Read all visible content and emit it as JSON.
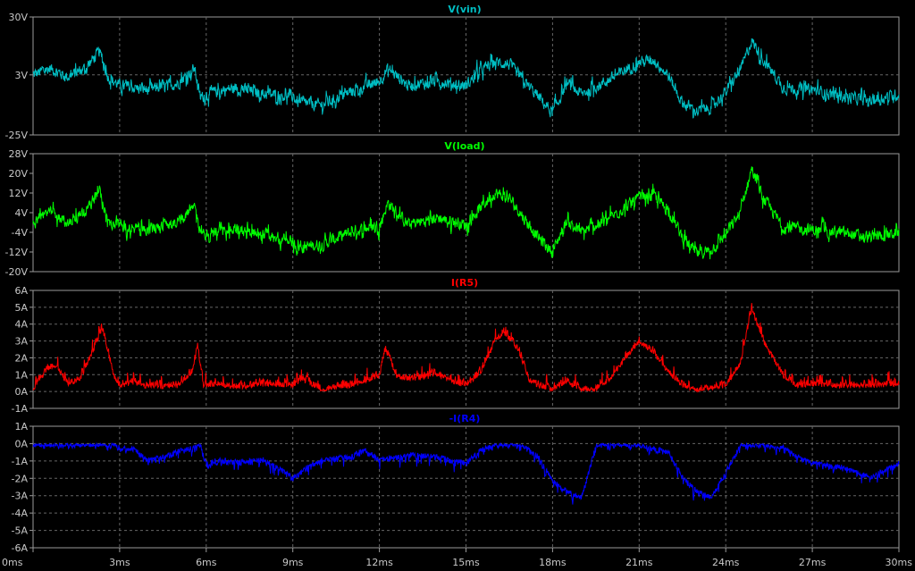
{
  "window": {
    "background": "#000000",
    "grid_color": "#666666",
    "frame_color": "#9a9a9a",
    "tick_color": "#c8c8c8"
  },
  "chart_data": [
    {
      "type": "line",
      "title": "V(vin)",
      "color": "#00bfc4",
      "y_ticks": [
        "30V",
        "3V",
        "-25V"
      ],
      "ylim": [
        -25,
        30
      ],
      "y_unit": "V",
      "x_ticks": [
        "0ms",
        "3ms",
        "6ms",
        "9ms",
        "12ms",
        "15ms",
        "18ms",
        "21ms",
        "24ms",
        "27ms",
        "30ms"
      ],
      "xlim": [
        0,
        30
      ],
      "x_unit": "ms",
      "grid": true,
      "noise": 4,
      "series": [
        {
          "x": [
            0,
            0.6,
            1.2,
            1.8,
            2.3,
            2.6,
            3.0,
            4.0,
            5.0,
            5.6,
            5.8,
            6.0,
            7.0,
            8.0,
            9.0,
            9.2,
            10.0,
            11.0,
            12.0,
            12.3,
            13.0,
            14.0,
            15.0,
            15.5,
            16.0,
            16.5,
            17.0,
            17.5,
            18.0,
            18.5,
            19.0,
            20.0,
            21.0,
            21.5,
            22.0,
            22.5,
            23.0,
            23.5,
            24.0,
            24.5,
            24.9,
            25.3,
            26.0,
            27.0,
            28.0,
            29.0,
            30.0
          ],
          "y": [
            3,
            6,
            2,
            6,
            14,
            2,
            -2,
            -4,
            -1,
            6,
            -8,
            -6,
            -3,
            -6,
            -7,
            -10,
            -11,
            -5,
            0,
            6,
            -2,
            0,
            -2,
            5,
            9,
            8,
            0,
            -7,
            -15,
            -1,
            -6,
            1,
            9,
            10,
            3,
            -10,
            -14,
            -12,
            -5,
            5,
            19,
            10,
            -3,
            -4,
            -7,
            -9,
            -6
          ]
        }
      ]
    },
    {
      "type": "line",
      "title": "V(load)",
      "color": "#00ff00",
      "y_ticks": [
        "28V",
        "20V",
        "12V",
        "4V",
        "-4V",
        "-12V",
        "-20V"
      ],
      "ylim": [
        -20,
        28
      ],
      "y_unit": "V",
      "x_ticks": [
        "0ms",
        "3ms",
        "6ms",
        "9ms",
        "12ms",
        "15ms",
        "18ms",
        "21ms",
        "24ms",
        "27ms",
        "30ms"
      ],
      "xlim": [
        0,
        30
      ],
      "x_unit": "ms",
      "grid": false,
      "noise": 3.5,
      "series": [
        {
          "x": [
            0,
            0.6,
            1.2,
            1.8,
            2.3,
            2.6,
            3.0,
            4.0,
            5.0,
            5.6,
            5.8,
            6.0,
            7.0,
            8.0,
            9.0,
            9.2,
            10.0,
            11.0,
            12.0,
            12.3,
            13.0,
            14.0,
            15.0,
            15.5,
            16.0,
            16.5,
            17.0,
            17.5,
            18.0,
            18.5,
            19.0,
            20.0,
            21.0,
            21.5,
            22.0,
            22.5,
            23.0,
            23.5,
            24.0,
            24.5,
            24.9,
            25.3,
            26.0,
            27.0,
            28.0,
            29.0,
            30.0
          ],
          "y": [
            0,
            4,
            0,
            4,
            13,
            0,
            -1,
            -3,
            0,
            7,
            -4,
            -5,
            -3,
            -5,
            -8,
            -10,
            -9,
            -4,
            -1,
            8,
            -1,
            2,
            -1,
            6,
            12,
            10,
            2,
            -6,
            -12,
            1,
            -4,
            2,
            10,
            11,
            5,
            -6,
            -13,
            -11,
            -5,
            4,
            22,
            10,
            -2,
            -3,
            -4,
            -6,
            -4
          ]
        }
      ]
    },
    {
      "type": "line",
      "title": "I(R5)",
      "color": "#ff0000",
      "y_ticks": [
        "6A",
        "5A",
        "4A",
        "3A",
        "2A",
        "1A",
        "0A",
        "-1A"
      ],
      "ylim": [
        -1,
        6
      ],
      "y_unit": "A",
      "x_ticks": [
        "0ms",
        "3ms",
        "6ms",
        "9ms",
        "12ms",
        "15ms",
        "18ms",
        "21ms",
        "24ms",
        "27ms",
        "30ms"
      ],
      "xlim": [
        0,
        30
      ],
      "x_unit": "ms",
      "grid": true,
      "noise": 1.2,
      "clip_min": 0,
      "series": [
        {
          "x": [
            0,
            0.5,
            0.8,
            1.2,
            1.6,
            2.0,
            2.4,
            2.8,
            3.0,
            3.5,
            4.0,
            5.0,
            5.5,
            5.7,
            5.9,
            6.5,
            7.0,
            8.0,
            9.0,
            9.3,
            10.0,
            11.0,
            12.0,
            12.2,
            12.6,
            13.0,
            14.0,
            15.0,
            15.5,
            16.0,
            16.3,
            16.8,
            17.2,
            17.5,
            18.0,
            18.5,
            19.0,
            19.5,
            20.0,
            20.5,
            21.0,
            21.5,
            22.0,
            22.5,
            23.0,
            24.0,
            24.5,
            24.9,
            25.3,
            26.0,
            26.5,
            27.0,
            28.0,
            29.0,
            30.0
          ],
          "y": [
            0,
            1.2,
            1.4,
            0.3,
            0.5,
            2.0,
            3.6,
            0.8,
            0.2,
            0.4,
            0.1,
            0.2,
            1.0,
            2.5,
            0.2,
            0.3,
            0.1,
            0.3,
            0.2,
            0.6,
            0,
            0.2,
            0.8,
            2.4,
            0.8,
            0.6,
            0.8,
            0.2,
            1.0,
            2.8,
            3.4,
            2.4,
            0.5,
            0.2,
            0,
            0.4,
            0,
            0,
            0.6,
            1.8,
            2.8,
            2.2,
            1.0,
            0.2,
            0,
            0.2,
            1.5,
            4.8,
            2.8,
            0.8,
            0.2,
            0.3,
            0.2,
            0.2,
            0.3
          ]
        }
      ]
    },
    {
      "type": "line",
      "title": "-I(R4)",
      "color": "#0000ff",
      "y_ticks": [
        "1A",
        "0A",
        "-1A",
        "-2A",
        "-3A",
        "-4A",
        "-5A",
        "-6A"
      ],
      "ylim": [
        -6,
        1
      ],
      "y_unit": "A",
      "x_ticks": [
        "0ms",
        "3ms",
        "6ms",
        "9ms",
        "12ms",
        "15ms",
        "18ms",
        "21ms",
        "24ms",
        "27ms",
        "30ms"
      ],
      "xlim": [
        0,
        30
      ],
      "x_unit": "ms",
      "grid": true,
      "noise": 1.0,
      "clip_max": 0,
      "series": [
        {
          "x": [
            0,
            2.8,
            3.0,
            3.5,
            4.0,
            4.5,
            5.0,
            5.8,
            6.0,
            6.5,
            7.0,
            8.0,
            9.0,
            9.5,
            10.0,
            11.0,
            11.5,
            12.0,
            13.0,
            14.0,
            15.0,
            15.5,
            16.0,
            17.0,
            17.5,
            18.0,
            18.5,
            19.0,
            19.5,
            20.0,
            21.0,
            22.0,
            22.5,
            23.0,
            23.5,
            24.0,
            24.5,
            25.0,
            26.0,
            26.5,
            27.0,
            28.0,
            29.0,
            30.0
          ],
          "y": [
            0,
            0,
            -0.1,
            -0.2,
            -0.8,
            -0.6,
            -0.3,
            0,
            -1.0,
            -0.8,
            -0.9,
            -0.8,
            -1.8,
            -1.2,
            -0.8,
            -0.6,
            -0.2,
            -0.8,
            -0.5,
            -0.6,
            -1.0,
            -0.2,
            0,
            0,
            -0.6,
            -2.0,
            -2.6,
            -3.0,
            0,
            0,
            0,
            -0.3,
            -1.8,
            -2.6,
            -3.0,
            -1.5,
            0,
            0,
            -0.1,
            -0.6,
            -1.0,
            -1.2,
            -1.8,
            -1.0
          ]
        }
      ]
    }
  ]
}
